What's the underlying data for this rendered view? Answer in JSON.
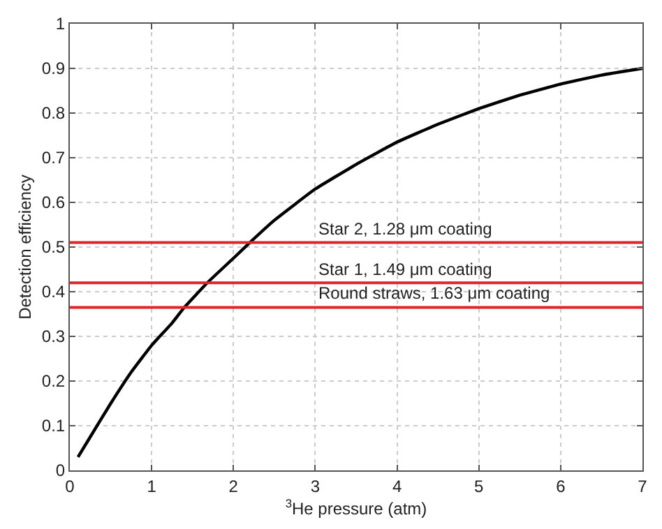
{
  "chart_data": {
    "type": "line",
    "xlabel": "$^{3}$He pressure (atm)",
    "ylabel": "Detection efficiency",
    "x": [
      0.1,
      0.25,
      0.5,
      0.75,
      1,
      1.25,
      1.4,
      1.68,
      2,
      2.2,
      2.5,
      3,
      3.5,
      4,
      4.5,
      5,
      5.5,
      6,
      6.5,
      7
    ],
    "series": [
      {
        "color": "#000000",
        "values": [
          0.03,
          0.075,
          0.15,
          0.22,
          0.28,
          0.33,
          0.365,
          0.42,
          0.475,
          0.51,
          0.56,
          0.63,
          0.685,
          0.735,
          0.775,
          0.81,
          0.84,
          0.865,
          0.885,
          0.9
        ]
      }
    ],
    "xlim": [
      0,
      7
    ],
    "xticks": [
      0,
      1,
      2,
      3,
      4,
      5,
      6,
      7
    ],
    "ylim": [
      0,
      1
    ],
    "yticks": [
      0,
      0.1,
      0.2,
      0.3,
      0.4,
      0.5,
      0.6,
      0.7,
      0.8,
      0.9,
      1
    ],
    "ref_lines": [
      {
        "axis": "y",
        "value": 0.51,
        "label": "Star 2, 1.28 μm coating",
        "color": "#e0262b"
      },
      {
        "axis": "y",
        "value": 0.42,
        "label": "Star 1, 1.49 μm coating",
        "color": "#e0262b"
      },
      {
        "axis": "y",
        "value": 0.365,
        "label": "Round straws, 1.63 μm coating",
        "color": "#e0262b"
      }
    ],
    "grid": true,
    "marker": "none",
    "line_style": "solid"
  }
}
